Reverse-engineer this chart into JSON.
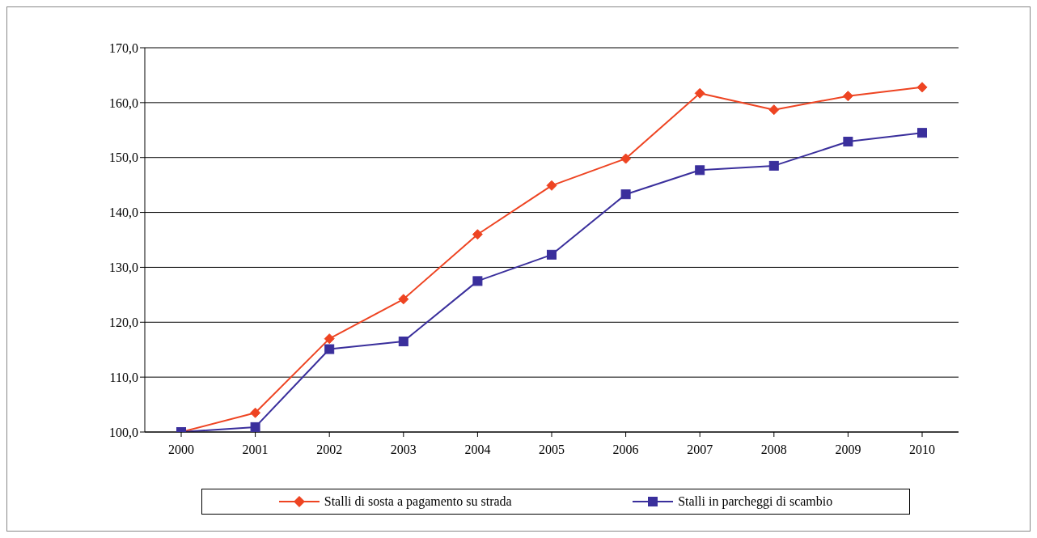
{
  "chart_data": {
    "type": "line",
    "categories": [
      "2000",
      "2001",
      "2002",
      "2003",
      "2004",
      "2005",
      "2006",
      "2007",
      "2008",
      "2009",
      "2010"
    ],
    "series": [
      {
        "name": "Stalli di sosta a pagamento su strada",
        "color": "#ee4422",
        "marker": "diamond",
        "values": [
          100,
          103.5,
          117,
          124.2,
          136,
          144.9,
          149.8,
          161.7,
          158.7,
          161.2,
          162.8
        ]
      },
      {
        "name": "Stalli in parcheggi di scambio",
        "color": "#3a2f9c",
        "marker": "square",
        "values": [
          100,
          100.9,
          115.1,
          116.5,
          127.5,
          132.3,
          143.3,
          147.7,
          148.5,
          152.9,
          154.5
        ]
      }
    ],
    "ylim": [
      100,
      170
    ],
    "yticks": [
      {
        "value": 100,
        "label": "100,0"
      },
      {
        "value": 110,
        "label": "110,0"
      },
      {
        "value": 120,
        "label": "120,0"
      },
      {
        "value": 130,
        "label": "130,0"
      },
      {
        "value": 140,
        "label": "140,0"
      },
      {
        "value": 150,
        "label": "150,0"
      },
      {
        "value": 160,
        "label": "160,0"
      },
      {
        "value": 170,
        "label": "170,0"
      }
    ],
    "grid": "y",
    "legend": "bottom"
  }
}
